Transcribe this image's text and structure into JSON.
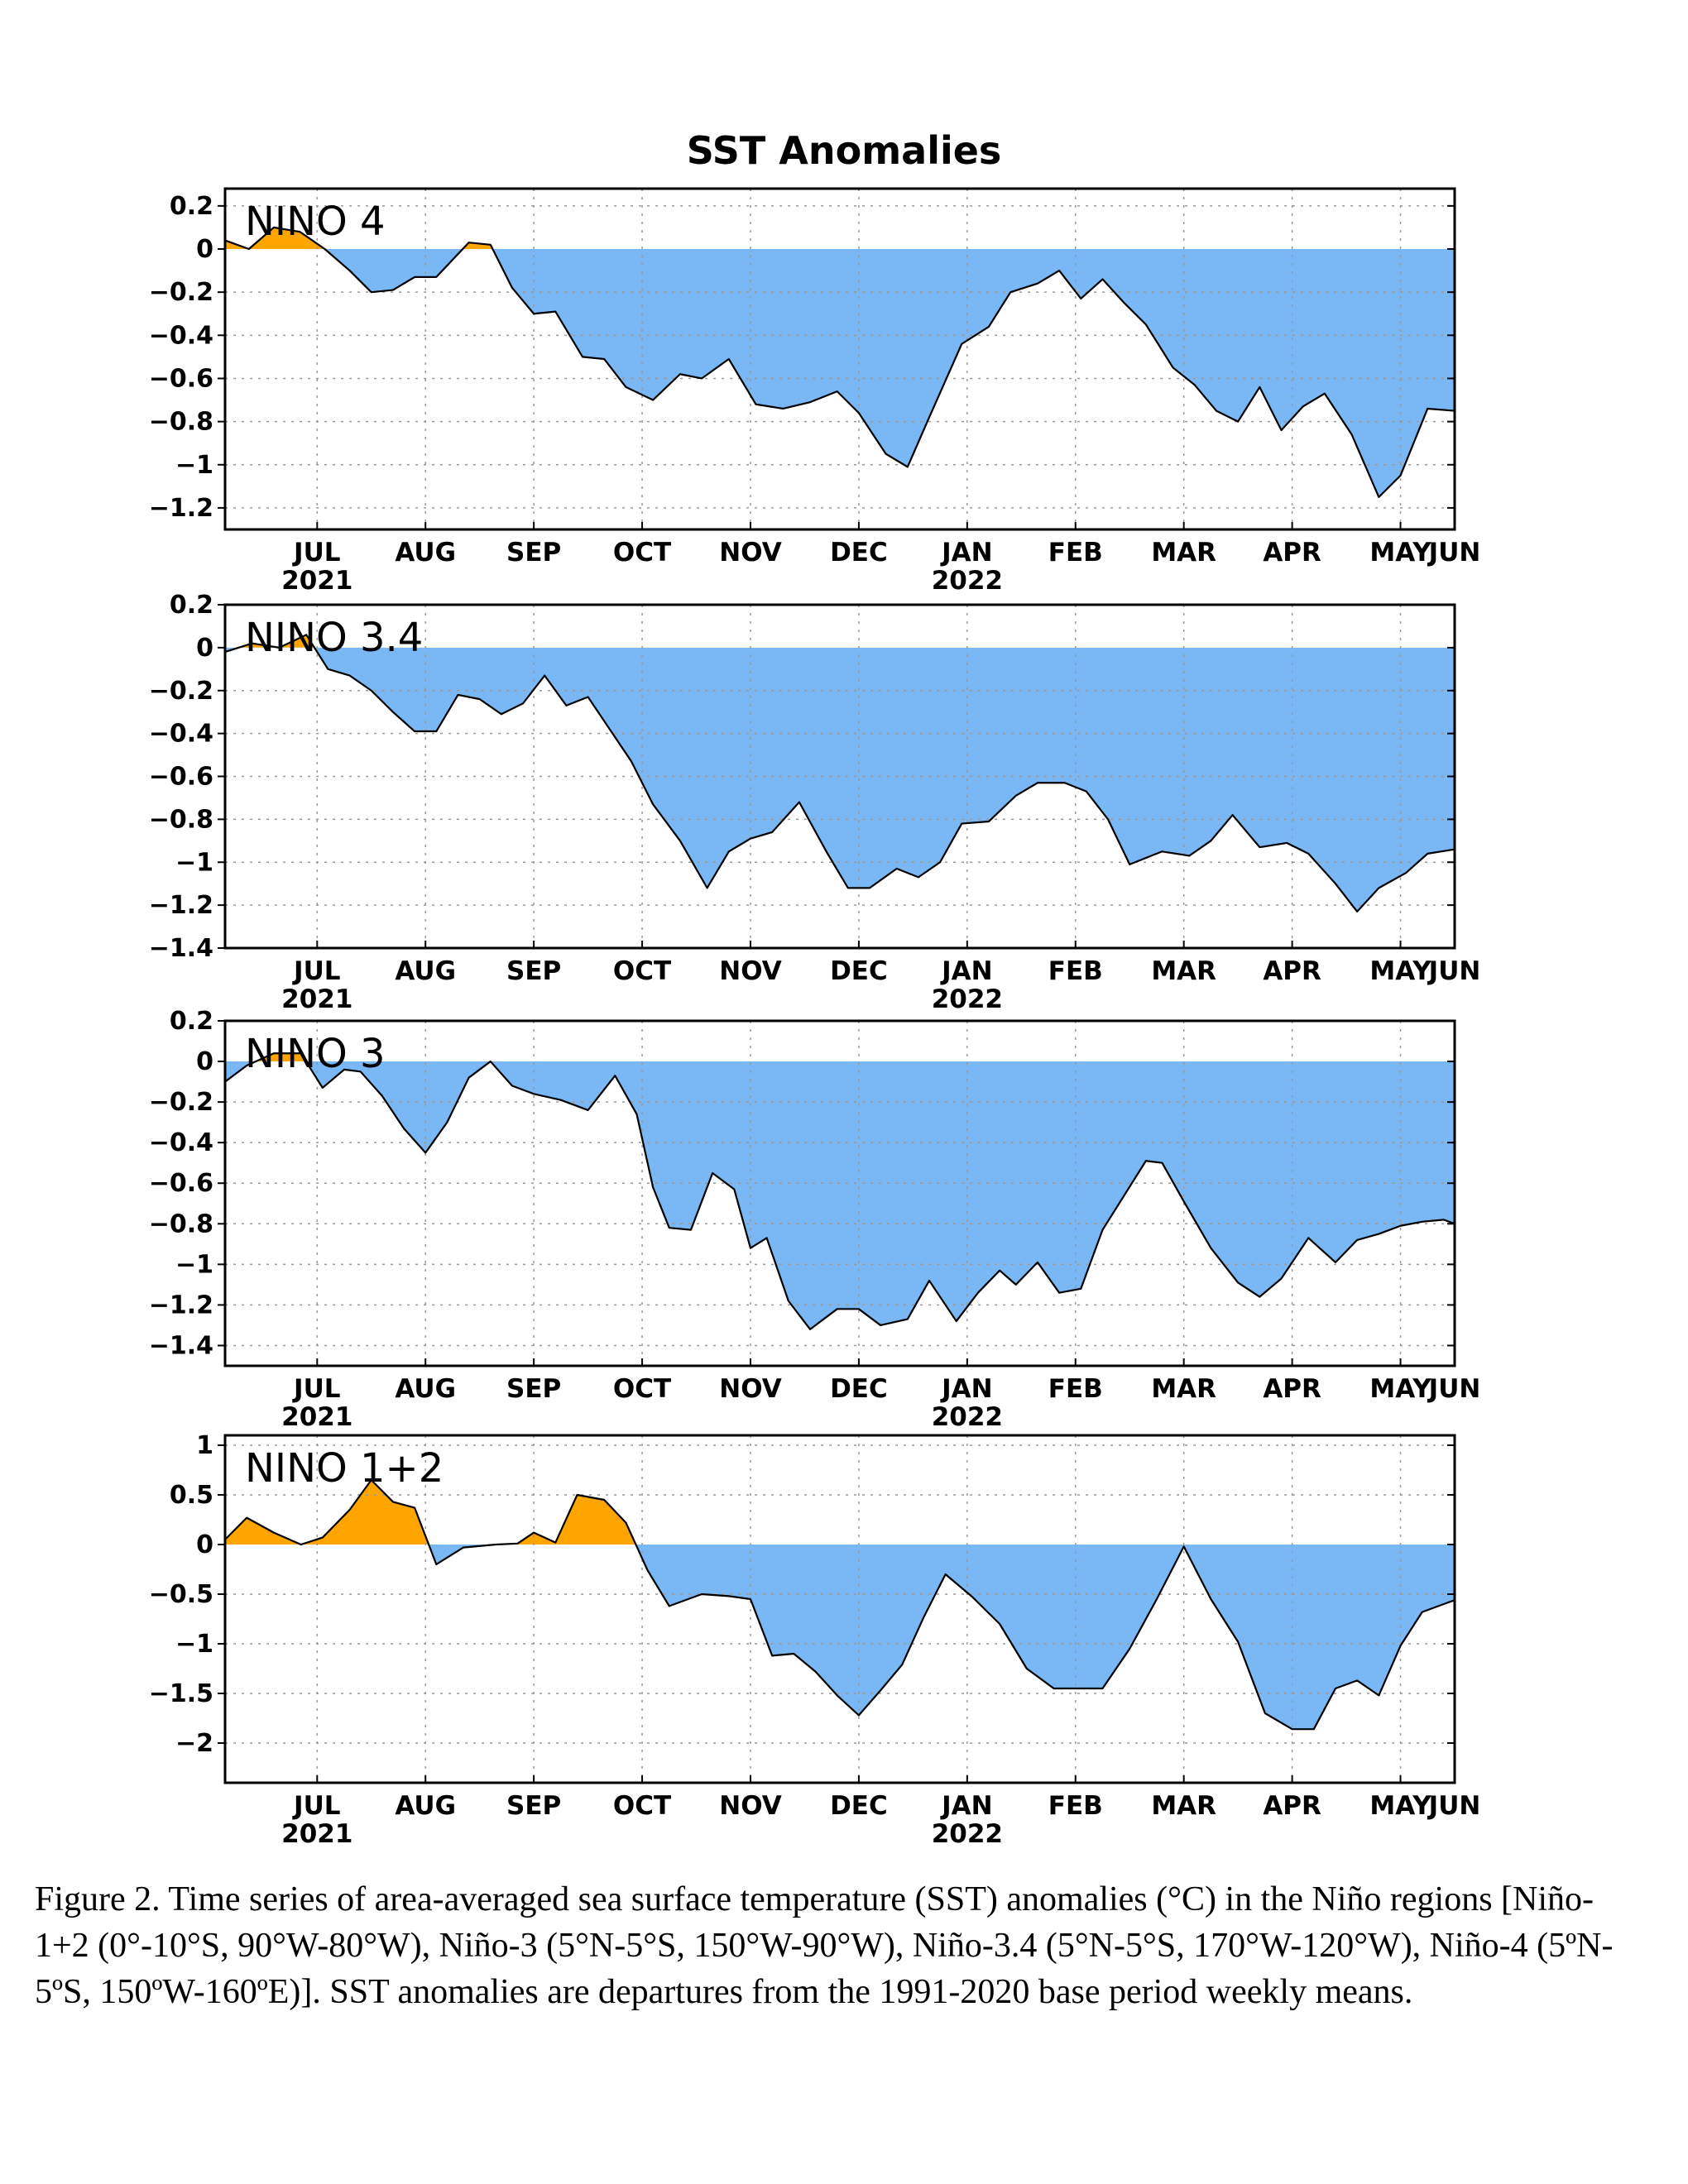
{
  "title": "SST Anomalies",
  "colors": {
    "positive": "#ffa500",
    "negative": "#7ab8f5",
    "line": "#000000",
    "grid": "#999999"
  },
  "caption": "Figure 2. Time series of area-averaged sea surface temperature (SST) anomalies (°C) in the Niño regions [Niño-1+2 (0°-10°S, 90°W-80°W), Niño-3 (5°N-5°S, 150°W-90°W), Niño-3.4 (5°N-5°S, 170°W-120°W), Niño-4 (5ºN-5ºS, 150ºW-160ºE)]. SST anomalies are departures from the 1991-2020 base period weekly means.",
  "chart_data": [
    {
      "type": "area",
      "title": "NINO 4",
      "xlim": [
        5.65,
        17.0
      ],
      "x_ticks": [
        {
          "x": 6.5,
          "label": "JUL",
          "year": "2021"
        },
        {
          "x": 7.5,
          "label": "AUG"
        },
        {
          "x": 8.5,
          "label": "SEP"
        },
        {
          "x": 9.5,
          "label": "OCT"
        },
        {
          "x": 10.5,
          "label": "NOV"
        },
        {
          "x": 11.5,
          "label": "DEC"
        },
        {
          "x": 12.5,
          "label": "JAN",
          "year": "2022"
        },
        {
          "x": 13.5,
          "label": "FEB"
        },
        {
          "x": 14.5,
          "label": "MAR"
        },
        {
          "x": 15.5,
          "label": "APR"
        },
        {
          "x": 16.5,
          "label": "MAY"
        },
        {
          "x": 17.0,
          "label": "JUN"
        }
      ],
      "ylim": [
        -1.3,
        0.28
      ],
      "y_ticks": [
        0.2,
        0,
        -0.2,
        -0.4,
        -0.6,
        -0.8,
        -1,
        -1.2
      ],
      "y_tick_labels": [
        "0.2",
        "0",
        "−0.2",
        "−0.4",
        "−0.6",
        "−0.8",
        "−1",
        "−1.2"
      ],
      "x": [
        5.65,
        5.87,
        6.1,
        6.34,
        6.57,
        6.8,
        7.0,
        7.2,
        7.4,
        7.6,
        7.9,
        8.1,
        8.3,
        8.5,
        8.7,
        8.95,
        9.15,
        9.35,
        9.6,
        9.85,
        10.05,
        10.3,
        10.55,
        10.8,
        11.05,
        11.3,
        11.5,
        11.75,
        11.95,
        12.15,
        12.45,
        12.7,
        12.9,
        13.15,
        13.35,
        13.55,
        13.75,
        13.95,
        14.15,
        14.4,
        14.6,
        14.8,
        15.0,
        15.2,
        15.4,
        15.6,
        15.8,
        16.05,
        16.3,
        16.5,
        16.75,
        17.0
      ],
      "values": [
        0.04,
        0.0,
        0.1,
        0.08,
        0.0,
        -0.1,
        -0.2,
        -0.19,
        -0.13,
        -0.13,
        0.03,
        0.02,
        -0.18,
        -0.3,
        -0.29,
        -0.5,
        -0.51,
        -0.64,
        -0.7,
        -0.58,
        -0.6,
        -0.51,
        -0.72,
        -0.74,
        -0.71,
        -0.66,
        -0.76,
        -0.95,
        -1.01,
        -0.78,
        -0.44,
        -0.36,
        -0.2,
        -0.16,
        -0.1,
        -0.23,
        -0.14,
        -0.25,
        -0.35,
        -0.55,
        -0.63,
        -0.75,
        -0.8,
        -0.64,
        -0.84,
        -0.73,
        -0.67,
        -0.86,
        -1.15,
        -1.05,
        -0.74,
        -0.75
      ]
    },
    {
      "type": "area",
      "title": "NINO 3.4",
      "xlim": [
        5.65,
        17.0
      ],
      "x_ticks": [
        {
          "x": 6.5,
          "label": "JUL",
          "year": "2021"
        },
        {
          "x": 7.5,
          "label": "AUG"
        },
        {
          "x": 8.5,
          "label": "SEP"
        },
        {
          "x": 9.5,
          "label": "OCT"
        },
        {
          "x": 10.5,
          "label": "NOV"
        },
        {
          "x": 11.5,
          "label": "DEC"
        },
        {
          "x": 12.5,
          "label": "JAN",
          "year": "2022"
        },
        {
          "x": 13.5,
          "label": "FEB"
        },
        {
          "x": 14.5,
          "label": "MAR"
        },
        {
          "x": 15.5,
          "label": "APR"
        },
        {
          "x": 16.5,
          "label": "MAY"
        },
        {
          "x": 17.0,
          "label": "JUN"
        }
      ],
      "ylim": [
        -1.4,
        0.2
      ],
      "y_ticks": [
        0.2,
        0,
        -0.2,
        -0.4,
        -0.6,
        -0.8,
        -1,
        -1.2,
        -1.4
      ],
      "y_tick_labels": [
        "0.2",
        "0",
        "−0.2",
        "−0.4",
        "−0.6",
        "−0.8",
        "−1",
        "−1.2",
        "−1.4"
      ],
      "x": [
        5.65,
        5.9,
        6.15,
        6.4,
        6.6,
        6.8,
        7.0,
        7.2,
        7.4,
        7.6,
        7.8,
        8.0,
        8.2,
        8.4,
        8.6,
        8.8,
        9.0,
        9.2,
        9.4,
        9.6,
        9.85,
        10.1,
        10.3,
        10.5,
        10.7,
        10.95,
        11.2,
        11.4,
        11.6,
        11.85,
        12.05,
        12.25,
        12.45,
        12.7,
        12.95,
        13.15,
        13.4,
        13.6,
        13.8,
        14.0,
        14.3,
        14.55,
        14.75,
        14.95,
        15.2,
        15.45,
        15.65,
        15.9,
        16.1,
        16.3,
        16.55,
        16.75,
        17.0
      ],
      "values": [
        -0.02,
        0.02,
        0.0,
        0.06,
        -0.1,
        -0.13,
        -0.2,
        -0.3,
        -0.39,
        -0.39,
        -0.22,
        -0.24,
        -0.31,
        -0.26,
        -0.13,
        -0.27,
        -0.23,
        -0.38,
        -0.53,
        -0.73,
        -0.9,
        -1.12,
        -0.95,
        -0.89,
        -0.86,
        -0.72,
        -0.95,
        -1.12,
        -1.12,
        -1.03,
        -1.07,
        -1.0,
        -0.82,
        -0.81,
        -0.69,
        -0.63,
        -0.63,
        -0.67,
        -0.8,
        -1.01,
        -0.95,
        -0.97,
        -0.9,
        -0.78,
        -0.93,
        -0.91,
        -0.96,
        -1.1,
        -1.23,
        -1.12,
        -1.05,
        -0.96,
        -0.94
      ]
    },
    {
      "type": "area",
      "title": "NINO 3",
      "xlim": [
        5.65,
        17.0
      ],
      "x_ticks": [
        {
          "x": 6.5,
          "label": "JUL",
          "year": "2021"
        },
        {
          "x": 7.5,
          "label": "AUG"
        },
        {
          "x": 8.5,
          "label": "SEP"
        },
        {
          "x": 9.5,
          "label": "OCT"
        },
        {
          "x": 10.5,
          "label": "NOV"
        },
        {
          "x": 11.5,
          "label": "DEC"
        },
        {
          "x": 12.5,
          "label": "JAN",
          "year": "2022"
        },
        {
          "x": 13.5,
          "label": "FEB"
        },
        {
          "x": 14.5,
          "label": "MAR"
        },
        {
          "x": 15.5,
          "label": "APR"
        },
        {
          "x": 16.5,
          "label": "MAY"
        },
        {
          "x": 17.0,
          "label": "JUN"
        }
      ],
      "ylim": [
        -1.5,
        0.2
      ],
      "y_ticks": [
        0.2,
        0,
        -0.2,
        -0.4,
        -0.6,
        -0.8,
        -1,
        -1.2,
        -1.4
      ],
      "y_tick_labels": [
        "0.2",
        "0",
        "−0.2",
        "−0.4",
        "−0.6",
        "−0.8",
        "−1",
        "−1.2",
        "−1.4"
      ],
      "x": [
        5.65,
        5.85,
        6.1,
        6.35,
        6.55,
        6.75,
        6.9,
        7.1,
        7.3,
        7.5,
        7.7,
        7.9,
        8.1,
        8.3,
        8.5,
        8.75,
        9.0,
        9.25,
        9.45,
        9.6,
        9.75,
        9.95,
        10.15,
        10.35,
        10.5,
        10.65,
        10.85,
        11.05,
        11.3,
        11.5,
        11.7,
        11.95,
        12.15,
        12.4,
        12.6,
        12.8,
        12.95,
        13.15,
        13.35,
        13.55,
        13.75,
        13.95,
        14.15,
        14.3,
        14.5,
        14.75,
        15.0,
        15.2,
        15.4,
        15.65,
        15.9,
        16.1,
        16.3,
        16.5,
        16.7,
        16.9,
        17.0
      ],
      "values": [
        -0.1,
        -0.02,
        0.04,
        0.04,
        -0.13,
        -0.04,
        -0.05,
        -0.17,
        -0.33,
        -0.45,
        -0.3,
        -0.08,
        0.0,
        -0.12,
        -0.16,
        -0.19,
        -0.24,
        -0.07,
        -0.26,
        -0.62,
        -0.82,
        -0.83,
        -0.55,
        -0.63,
        -0.92,
        -0.87,
        -1.18,
        -1.32,
        -1.22,
        -1.22,
        -1.3,
        -1.27,
        -1.08,
        -1.28,
        -1.14,
        -1.03,
        -1.1,
        -0.99,
        -1.14,
        -1.12,
        -0.83,
        -0.66,
        -0.49,
        -0.5,
        -0.69,
        -0.92,
        -1.09,
        -1.16,
        -1.07,
        -0.87,
        -0.99,
        -0.88,
        -0.85,
        -0.81,
        -0.79,
        -0.78,
        -0.8
      ]
    },
    {
      "type": "area",
      "title": "NINO 1+2",
      "xlim": [
        5.65,
        17.0
      ],
      "x_ticks": [
        {
          "x": 6.5,
          "label": "JUL",
          "year": "2021"
        },
        {
          "x": 7.5,
          "label": "AUG"
        },
        {
          "x": 8.5,
          "label": "SEP"
        },
        {
          "x": 9.5,
          "label": "OCT"
        },
        {
          "x": 10.5,
          "label": "NOV"
        },
        {
          "x": 11.5,
          "label": "DEC"
        },
        {
          "x": 12.5,
          "label": "JAN",
          "year": "2022"
        },
        {
          "x": 13.5,
          "label": "FEB"
        },
        {
          "x": 14.5,
          "label": "MAR"
        },
        {
          "x": 15.5,
          "label": "APR"
        },
        {
          "x": 16.5,
          "label": "MAY"
        },
        {
          "x": 17.0,
          "label": "JUN"
        }
      ],
      "ylim": [
        -2.4,
        1.1
      ],
      "y_ticks": [
        1,
        0.5,
        0,
        -0.5,
        -1,
        -1.5,
        -2
      ],
      "y_tick_labels": [
        "1",
        "0.5",
        "0",
        "−0.5",
        "−1",
        "−1.5",
        "−2"
      ],
      "x": [
        5.65,
        5.85,
        6.1,
        6.35,
        6.55,
        6.8,
        7.0,
        7.2,
        7.4,
        7.6,
        7.85,
        8.15,
        8.35,
        8.5,
        8.7,
        8.9,
        9.15,
        9.35,
        9.55,
        9.75,
        10.05,
        10.3,
        10.5,
        10.7,
        10.9,
        11.1,
        11.3,
        11.5,
        11.7,
        11.9,
        12.1,
        12.3,
        12.55,
        12.8,
        13.05,
        13.3,
        13.5,
        13.75,
        14.0,
        14.25,
        14.5,
        14.75,
        15.0,
        15.25,
        15.5,
        15.7,
        15.9,
        16.1,
        16.3,
        16.5,
        16.7,
        16.85,
        17.0
      ],
      "values": [
        0.05,
        0.27,
        0.12,
        0.0,
        0.07,
        0.35,
        0.65,
        0.43,
        0.37,
        -0.2,
        -0.03,
        0.0,
        0.01,
        0.12,
        0.02,
        0.5,
        0.45,
        0.22,
        -0.26,
        -0.62,
        -0.5,
        -0.52,
        -0.55,
        -1.12,
        -1.1,
        -1.28,
        -1.52,
        -1.72,
        -1.47,
        -1.21,
        -0.73,
        -0.3,
        -0.53,
        -0.8,
        -1.25,
        -1.45,
        -1.45,
        -1.45,
        -1.05,
        -0.55,
        -0.02,
        -0.55,
        -0.98,
        -1.7,
        -1.86,
        -1.86,
        -1.45,
        -1.37,
        -1.52,
        -1.02,
        -0.68,
        -0.62,
        -0.56
      ]
    }
  ]
}
